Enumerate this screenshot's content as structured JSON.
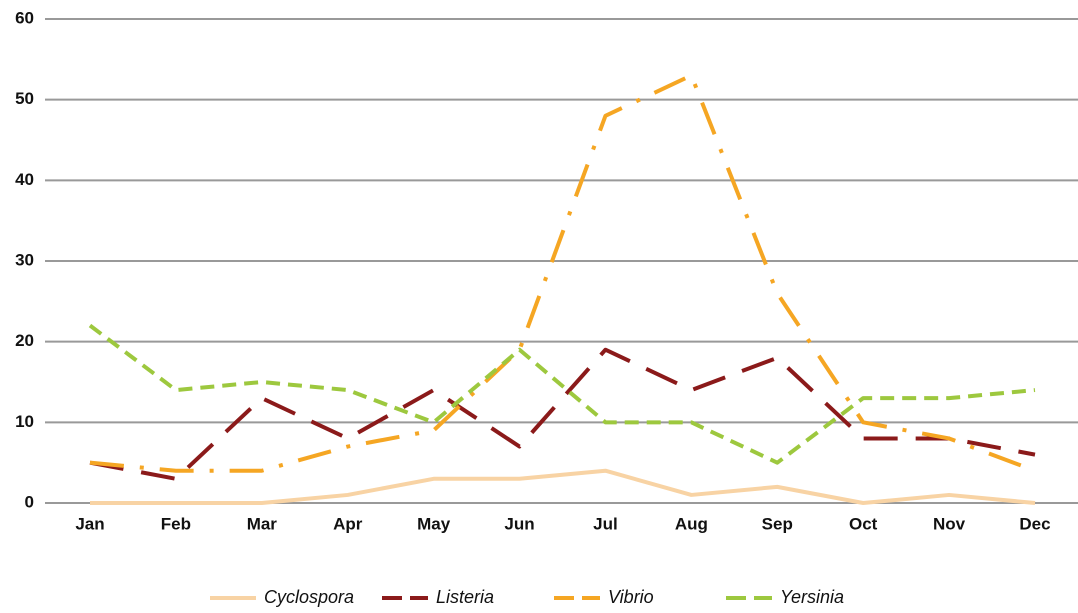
{
  "chart_data": {
    "type": "line",
    "categories": [
      "Jan",
      "Feb",
      "Mar",
      "Apr",
      "May",
      "Jun",
      "Jul",
      "Aug",
      "Sep",
      "Oct",
      "Nov",
      "Dec"
    ],
    "series": [
      {
        "name": "Cyclospora",
        "color": "#f8d3a4",
        "values": [
          0,
          0,
          0,
          1,
          3,
          3,
          4,
          1,
          2,
          0,
          1,
          0
        ]
      },
      {
        "name": "Listeria",
        "color": "#8b1a1a",
        "values": [
          5,
          3,
          13,
          8,
          14,
          7,
          19,
          14,
          18,
          8,
          8,
          6
        ]
      },
      {
        "name": "Vibrio",
        "color": "#f5a623",
        "values": [
          5,
          4,
          4,
          7,
          9,
          19,
          48,
          53,
          26,
          10,
          8,
          4
        ]
      },
      {
        "name": "Yersinia",
        "color": "#9dc83e",
        "values": [
          22,
          14,
          15,
          14,
          10,
          19,
          10,
          10,
          5,
          13,
          13,
          14
        ]
      }
    ],
    "ylim": [
      0,
      60
    ],
    "yticks": [
      0,
      10,
      20,
      30,
      40,
      50,
      60
    ],
    "grid": true
  }
}
